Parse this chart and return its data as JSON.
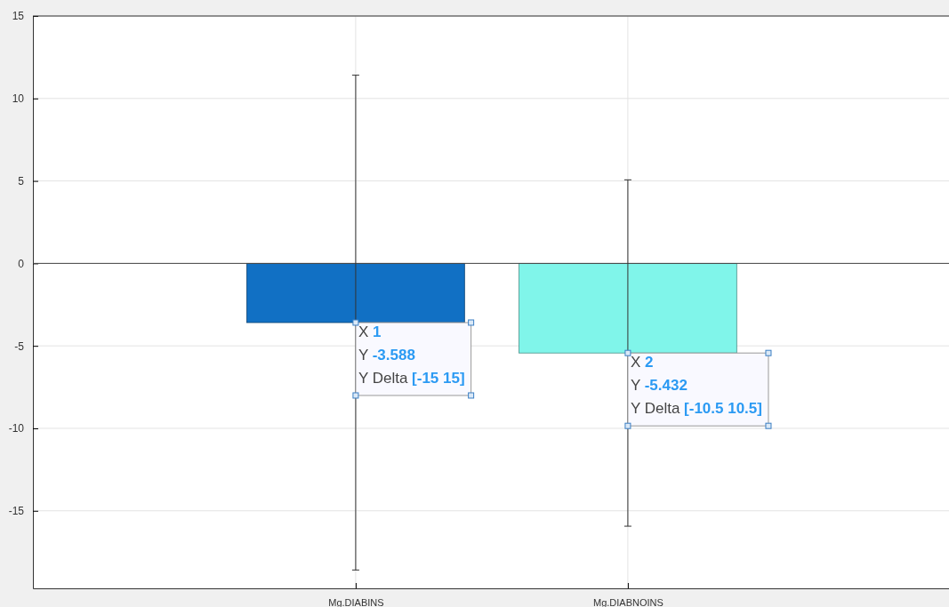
{
  "chart_data": {
    "type": "bar",
    "categories": [
      "Mg.DIABINS",
      "Mg.DIABNOINS"
    ],
    "values": [
      -3.588,
      -5.432
    ],
    "colors": [
      "#1170c4",
      "#80f5ea"
    ],
    "errors": [
      15,
      10.5
    ],
    "ylim": [
      -19.7,
      15
    ],
    "yticks": [
      -15,
      -10,
      -5,
      0,
      5,
      10,
      15
    ],
    "grid": true,
    "annotations": [
      "X 1\nY -3.588\nY Delta [-15 15]",
      {
        "text": "X 2\nY -5.432\nY Delta [-10.5 10.5]",
        "x": "Mg.DIABNOINS",
        "y": -5.432
      }
    ]
  }
}
